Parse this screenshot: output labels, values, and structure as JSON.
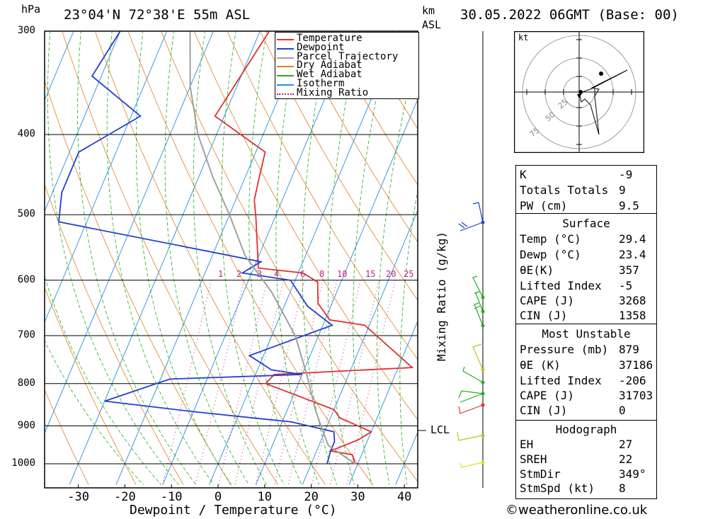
{
  "header": {
    "hpa_unit": "hPa",
    "location": "23°04'N 72°38'E 55m ASL",
    "km_unit": "km",
    "asl_unit": "ASL",
    "datetime": "30.05.2022 06GMT (Base: 00)"
  },
  "chart_data": {
    "type": "line",
    "title": "",
    "xlabel": "Dewpoint / Temperature (°C)",
    "ylabel": "hPa",
    "right_axis_label": "Mixing Ratio (g/kg)",
    "x_ticks": [
      -30,
      -20,
      -10,
      0,
      10,
      20,
      30,
      40
    ],
    "pressure_levels": [
      300,
      400,
      500,
      600,
      700,
      800,
      900,
      1000
    ],
    "mixing_ratio_labels": [
      "1",
      "2",
      "3",
      "4",
      "6",
      "8",
      "10",
      "15",
      "20",
      "25"
    ],
    "lcl_label": "LCL",
    "lcl_pressure": 905,
    "series": [
      {
        "name": "Temperature",
        "color": "#e03030",
        "points": [
          [
            -28,
            300
          ],
          [
            -32,
            380
          ],
          [
            -18,
            420
          ],
          [
            -17,
            450
          ],
          [
            -16,
            480
          ],
          [
            -14,
            505
          ],
          [
            -9,
            580
          ],
          [
            1,
            588
          ],
          [
            5,
            603
          ],
          [
            7,
            640
          ],
          [
            11,
            670
          ],
          [
            19,
            680
          ],
          [
            33,
            765
          ],
          [
            4,
            780
          ],
          [
            3,
            800
          ],
          [
            20,
            860
          ],
          [
            22,
            880
          ],
          [
            30,
            915
          ],
          [
            28,
            935
          ],
          [
            23,
            965
          ],
          [
            28,
            975
          ],
          [
            29.4,
            1000
          ]
        ]
      },
      {
        "name": "Dewpoint",
        "color": "#2040d0",
        "points": [
          [
            -60,
            300
          ],
          [
            -62,
            340
          ],
          [
            -48,
            380
          ],
          [
            -58,
            420
          ],
          [
            -58,
            470
          ],
          [
            -56,
            510
          ],
          [
            -9,
            570
          ],
          [
            -12,
            588
          ],
          [
            -1,
            600
          ],
          [
            5,
            645
          ],
          [
            10,
            670
          ],
          [
            12,
            680
          ],
          [
            -3,
            740
          ],
          [
            3,
            770
          ],
          [
            10,
            780
          ],
          [
            -18,
            790
          ],
          [
            -30,
            840
          ],
          [
            -10,
            865
          ],
          [
            12,
            890
          ],
          [
            22,
            915
          ],
          [
            23,
            940
          ],
          [
            23,
            965
          ],
          [
            23.4,
            1000
          ]
        ]
      },
      {
        "name": "Parcel Trajectory",
        "color": "#a0a0a0",
        "points": [
          [
            -45,
            300
          ],
          [
            -40,
            350
          ],
          [
            -34,
            400
          ],
          [
            -27,
            450
          ],
          [
            -20,
            500
          ],
          [
            -13,
            560
          ],
          [
            -4,
            620
          ],
          [
            5,
            700
          ],
          [
            11,
            780
          ],
          [
            16,
            860
          ],
          [
            19,
            905
          ],
          [
            22,
            950
          ],
          [
            29.4,
            1000
          ]
        ]
      }
    ],
    "legend": [
      {
        "name": "Temperature",
        "color": "#e03030",
        "style": "solid"
      },
      {
        "name": "Dewpoint",
        "color": "#2040d0",
        "style": "solid"
      },
      {
        "name": "Parcel Trajectory",
        "color": "#a0a0a0",
        "style": "solid"
      },
      {
        "name": "Dry Adiabat",
        "color": "#e08020",
        "style": "solid"
      },
      {
        "name": "Wet Adiabat",
        "color": "#20b020",
        "style": "solid"
      },
      {
        "name": "Isotherm",
        "color": "#2090e0",
        "style": "solid"
      },
      {
        "name": "Mixing Ratio",
        "color": "#c02080",
        "style": "dotted"
      }
    ],
    "legend_position": "top-right"
  },
  "hodograph": {
    "unit": "kt",
    "rings": [
      "25",
      "50",
      "75"
    ]
  },
  "indices": {
    "rows": [
      {
        "label": "K",
        "value": "-9"
      },
      {
        "label": "Totals Totals",
        "value": "9"
      },
      {
        "label": "PW (cm)",
        "value": "9.5"
      }
    ]
  },
  "surface": {
    "title": "Surface",
    "rows": [
      {
        "label": "Temp (°C)",
        "value": "29.4"
      },
      {
        "label": "Dewp (°C)",
        "value": "23.4"
      },
      {
        "label": "θE(K)",
        "value": "357"
      },
      {
        "label": "Lifted Index",
        "value": "-5"
      },
      {
        "label": "CAPE (J)",
        "value": "3268"
      },
      {
        "label": "CIN (J)",
        "value": "1358"
      }
    ]
  },
  "most_unstable": {
    "title": "Most Unstable",
    "rows": [
      {
        "label": "Pressure (mb)",
        "value": "879"
      },
      {
        "label": "θE (K)",
        "value": "37186"
      },
      {
        "label": "Lifted Index",
        "value": "-206"
      },
      {
        "label": "CAPE (J)",
        "value": "31703"
      },
      {
        "label": "CIN (J)",
        "value": "0"
      }
    ]
  },
  "hodograph_stats": {
    "title": "Hodograph",
    "rows": [
      {
        "label": "EH",
        "value": "27"
      },
      {
        "label": "SREH",
        "value": "22"
      },
      {
        "label": "StmDir",
        "value": "349°"
      },
      {
        "label": "StmSpd (kt)",
        "value": "8"
      }
    ]
  },
  "footer": {
    "copyright": "©weatheronline.co.uk"
  }
}
